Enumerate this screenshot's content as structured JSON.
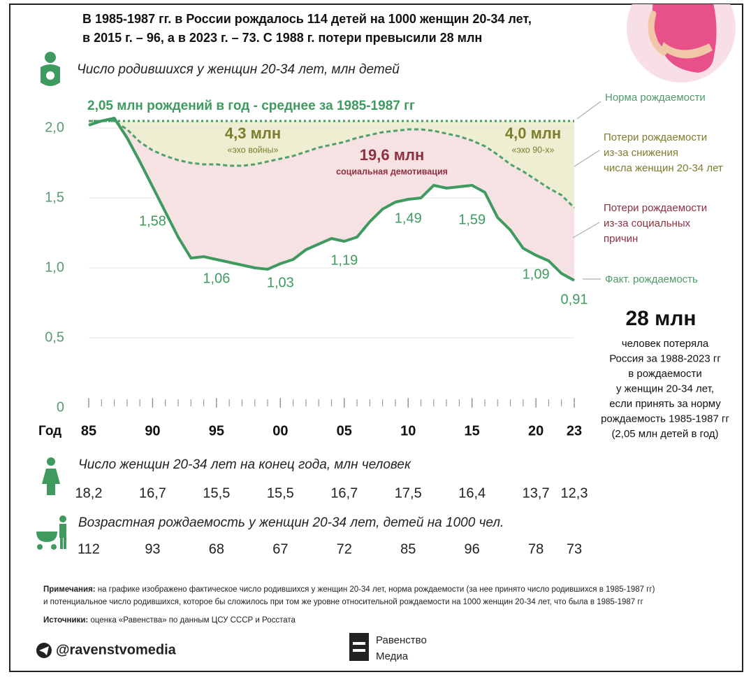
{
  "header": {
    "title_lines": [
      "В 1985-1987 гг. в России рождалось 114 детей на 1000 женщин 20-34 лет,",
      "в 2015 г. – 96, а в 2023 г. – 73. С 1988 г. потери превысили 28 млн"
    ]
  },
  "chart_data": {
    "type": "line",
    "title": "Число родившихся у женщин 20-34 лет, млн детей",
    "x_label": "Год",
    "x": [
      1985,
      1986,
      1987,
      1988,
      1989,
      1990,
      1991,
      1992,
      1993,
      1994,
      1995,
      1996,
      1997,
      1998,
      1999,
      2000,
      2001,
      2002,
      2003,
      2004,
      2005,
      2006,
      2007,
      2008,
      2009,
      2010,
      2011,
      2012,
      2013,
      2014,
      2015,
      2016,
      2017,
      2018,
      2019,
      2020,
      2021,
      2022,
      2023
    ],
    "xlim": [
      1985,
      2023
    ],
    "xticks": [
      {
        "value": 1985,
        "label": "85"
      },
      {
        "value": 1990,
        "label": "90"
      },
      {
        "value": 1995,
        "label": "95"
      },
      {
        "value": 2000,
        "label": "00"
      },
      {
        "value": 2005,
        "label": "05"
      },
      {
        "value": 2010,
        "label": "10"
      },
      {
        "value": 2015,
        "label": "15"
      },
      {
        "value": 2020,
        "label": "20"
      },
      {
        "value": 2023,
        "label": "23"
      }
    ],
    "ylim": [
      0,
      2.2
    ],
    "yticks": [
      0,
      {
        "value": 0.5,
        "label": "0,5"
      },
      {
        "value": 1,
        "label": "1,0"
      },
      {
        "value": 1.5,
        "label": "1,5"
      },
      {
        "value": 2,
        "label": "2,0"
      }
    ],
    "grid": true,
    "series": [
      {
        "name": "Норма рождаемости",
        "color": "#3f9a5f",
        "style": "dotted",
        "values": [
          2.05,
          2.05,
          2.05,
          2.05,
          2.05,
          2.05,
          2.05,
          2.05,
          2.05,
          2.05,
          2.05,
          2.05,
          2.05,
          2.05,
          2.05,
          2.05,
          2.05,
          2.05,
          2.05,
          2.05,
          2.05,
          2.05,
          2.05,
          2.05,
          2.05,
          2.05,
          2.05,
          2.05,
          2.05,
          2.05,
          2.05,
          2.05,
          2.05,
          2.05,
          2.05,
          2.05,
          2.05,
          2.05,
          2.05
        ]
      },
      {
        "color": "#4fa06a",
        "style": "dashed",
        "values": [
          2.05,
          2.05,
          2.05,
          1.99,
          1.9,
          1.84,
          1.8,
          1.77,
          1.75,
          1.74,
          1.74,
          1.73,
          1.73,
          1.74,
          1.76,
          1.78,
          1.8,
          1.83,
          1.86,
          1.88,
          1.9,
          1.93,
          1.95,
          1.97,
          1.98,
          1.99,
          1.99,
          1.98,
          1.96,
          1.94,
          1.91,
          1.87,
          1.81,
          1.74,
          1.69,
          1.63,
          1.57,
          1.52,
          1.43
        ]
      },
      {
        "name": "Факт. рождаемость",
        "color": "#3f9a5f",
        "style": "solid",
        "values": [
          2.02,
          2.05,
          2.07,
          1.93,
          1.76,
          1.58,
          1.4,
          1.22,
          1.07,
          1.08,
          1.06,
          1.04,
          1.02,
          1.0,
          0.99,
          1.03,
          1.06,
          1.13,
          1.17,
          1.21,
          1.19,
          1.22,
          1.33,
          1.42,
          1.47,
          1.49,
          1.5,
          1.59,
          1.57,
          1.58,
          1.59,
          1.54,
          1.36,
          1.27,
          1.14,
          1.09,
          1.05,
          0.96,
          0.91
        ],
        "value_labels": [
          null,
          null,
          null,
          null,
          null,
          "1,58",
          null,
          null,
          null,
          null,
          "1,06",
          null,
          null,
          null,
          null,
          "1,03",
          null,
          null,
          null,
          null,
          "1,19",
          null,
          null,
          null,
          null,
          "1,49",
          null,
          null,
          null,
          null,
          "1,59",
          null,
          null,
          null,
          null,
          "1,09",
          null,
          null,
          "0,91"
        ]
      }
    ],
    "norm_note": "2,05 млн рождений в год - среднее за 1985-1987 гг",
    "areas": [
      {
        "color": "#eeeed2",
        "label_color": "#7d7d2c",
        "label_lines": [
          "Потери рождаемости",
          "из-за снижения",
          "числа женщин 20-34 лет"
        ]
      },
      {
        "color": "#f6e2e2",
        "label_color": "#8e3040",
        "label_lines": [
          "Потери рождаемости",
          "из-за социальных",
          "причин"
        ]
      }
    ],
    "annotations": [
      {
        "value": "4,3 млн",
        "note": "«эхо войны»",
        "color": "#7d7d2c"
      },
      {
        "value": "19,6 млн",
        "note": "социальная демотивация",
        "color": "#8e3040"
      },
      {
        "value": "4,0 млн",
        "note": "«эхо 90-х»",
        "color": "#7d7d2c"
      }
    ]
  },
  "women": {
    "title": "Число женщин 20-34 лет на конец года, млн человек",
    "values": [
      "18,2",
      "16,7",
      "15,5",
      "15,5",
      "16,7",
      "17,5",
      "16,4",
      "13,7",
      "12,3"
    ]
  },
  "rate": {
    "title": "Возрастная рождаемость у женщин 20-34 лет, детей на 1000 чел.",
    "values": [
      112,
      93,
      68,
      67,
      72,
      85,
      96,
      78,
      73
    ]
  },
  "summary": {
    "value": "28 млн",
    "lines": [
      "человек потеряла",
      "Россия за 1988-2023 гг",
      "в рождаемости",
      "у женщин 20-34 лет,",
      "если принять за норму",
      "рождаемость 1985-1987 гг",
      "(2,05 млн детей в год)"
    ]
  },
  "notes": {
    "label": "Примечания:",
    "lines": [
      "на графике изображено фактическое число родившихся у женщин 20-34 лет, норма рождаемости (за нее принято число родившихся в 1985-1987 гг)",
      "и потенциальное число родившихся, которое бы сложилось при том же уровне относительной рождаемости на 1000 женщин 20-34 лет, что была в 1985-1987 гг"
    ],
    "sources_label": "Источники:",
    "sources": "оценка «Равенства» по данным ЦСУ СССР и Росстата"
  },
  "footer": {
    "handle": "@ravenstvomedia",
    "logo_lines": [
      "Равенство",
      "Медиа"
    ]
  }
}
